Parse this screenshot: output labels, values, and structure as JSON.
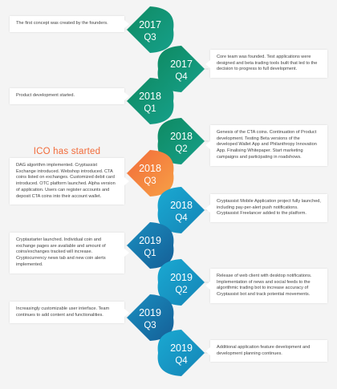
{
  "colors": {
    "background": "#f4f4f4",
    "card": "#ffffff",
    "text": "#444444",
    "accent_orange": "#f26b3a",
    "teal_dark": "#12805f",
    "teal": "#169a80",
    "blue_light": "#1aa3c8",
    "blue_dark": "#1672a6"
  },
  "milestone_label": "ICO has started",
  "events": [
    {
      "year": "2017",
      "quarter": "Q3",
      "side": "left",
      "highlight": false,
      "gradient": [
        "#0f8a62",
        "#16a08a"
      ],
      "text": "The first concept was created by the founders."
    },
    {
      "year": "2017",
      "quarter": "Q4",
      "side": "right",
      "highlight": false,
      "gradient": [
        "#0f8a62",
        "#16a08a"
      ],
      "text": "Core team was founded. Test applications were designed and beta trading tools built that led to the decision to progress to full development."
    },
    {
      "year": "2018",
      "quarter": "Q1",
      "side": "left",
      "highlight": false,
      "gradient": [
        "#0f8a62",
        "#16a08a"
      ],
      "text": "Product development started."
    },
    {
      "year": "2018",
      "quarter": "Q2",
      "side": "right",
      "highlight": false,
      "gradient": [
        "#0f8a62",
        "#16a08a"
      ],
      "text": "Genesis of the CTA coins. Continuation of Product development. Testing Beta versions of the developed Wallet App and Philanthropy Innovation App. Finalising Whitepaper. Start marketing campaigns and participating in roadshows."
    },
    {
      "year": "2018",
      "quarter": "Q3",
      "side": "left",
      "highlight": true,
      "gradient": [
        "#f26b3a",
        "#f7a046"
      ],
      "text": "DAG algorithm implemented. Cryptassist Exchange introduced. Webshop introduced. CTA coins listed on exchanges. Customized debit card introduced. OTC platform launched. Alpha version of application. Users can register accounts and deposit CTA coins into their account wallet."
    },
    {
      "year": "2018",
      "quarter": "Q4",
      "side": "right",
      "highlight": false,
      "gradient": [
        "#1aa9d2",
        "#1584b6"
      ],
      "text": "Cryptassist Mobile Application project fully launched, including pay-per-alert push notifications. Cryptassist Freelancer added to the platform."
    },
    {
      "year": "2019",
      "quarter": "Q1",
      "side": "left",
      "highlight": false,
      "gradient": [
        "#1a8fc0",
        "#155f97"
      ],
      "text": "Cryptastarter launched. Individual coin and exchange pages are available and amount of coins/exchanges tracked will increase. Cryptocurrency news tab and new coin alerts implemented."
    },
    {
      "year": "2019",
      "quarter": "Q2",
      "side": "right",
      "highlight": false,
      "gradient": [
        "#1aa9d2",
        "#1584b6"
      ],
      "text": "Release of web client with desktop notifications. Implementation of news and social feeds to the algorithmic trading bot to increase accuracy of Cryptassist bot and track potential movements."
    },
    {
      "year": "2019",
      "quarter": "Q3",
      "side": "left",
      "highlight": false,
      "gradient": [
        "#1a8fc0",
        "#155f97"
      ],
      "text": "Increasingly customizable user interface. Team continues to add content and functionalities."
    },
    {
      "year": "2019",
      "quarter": "Q4",
      "side": "right",
      "highlight": false,
      "gradient": [
        "#1aa9d2",
        "#1584b6"
      ],
      "text": "Additional application feature development and development planning continues."
    }
  ]
}
